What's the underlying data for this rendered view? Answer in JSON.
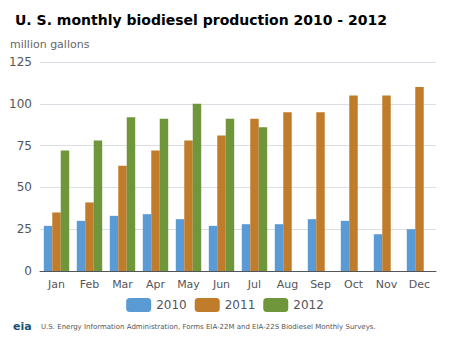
{
  "chart_data": {
    "type": "bar",
    "title": "U. S. monthly biodiesel production 2010 - 2012",
    "ylabel": "million gallons",
    "categories": [
      "Jan",
      "Feb",
      "Mar",
      "Apr",
      "May",
      "Jun",
      "Jul",
      "Aug",
      "Sep",
      "Oct",
      "Nov",
      "Dec"
    ],
    "series": [
      {
        "name": "2010",
        "color": "#5b9bd5",
        "values": [
          27,
          30,
          33,
          34,
          31,
          27,
          28,
          28,
          31,
          30,
          22,
          25
        ]
      },
      {
        "name": "2011",
        "color": "#c07c2a",
        "values": [
          35,
          41,
          63,
          72,
          78,
          81,
          91,
          95,
          95,
          105,
          105,
          110
        ]
      },
      {
        "name": "2012",
        "color": "#70963c",
        "values": [
          72,
          78,
          92,
          91,
          100,
          91,
          86,
          null,
          null,
          null,
          null,
          null
        ]
      }
    ],
    "ylim": [
      0,
      125
    ],
    "yticks": [
      0,
      25,
      50,
      75,
      100,
      125
    ],
    "grid": true,
    "legend": "bottom",
    "annotations": [
      "U.S. Energy Information Administration, Forms EIA-22M and EIA-22S Biodiesel Monthly Surveys.",
      "eia"
    ]
  }
}
